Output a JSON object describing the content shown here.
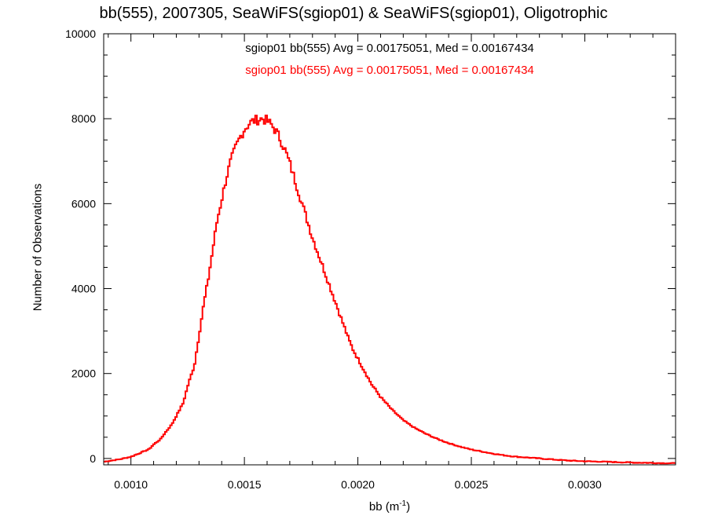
{
  "chart_data": {
    "type": "line",
    "title": "bb(555), 2007305, SeaWiFS(sgiop01) & SeaWiFS(sgiop01), Oligotrophic",
    "xlabel": {
      "base": "bb (m",
      "sup": "-1",
      "close": ")"
    },
    "ylabel": "Number of Observations",
    "xlim": [
      0.00088,
      0.0034
    ],
    "ylim": [
      -150,
      10000
    ],
    "x_ticks": [
      0.001,
      0.0015,
      0.002,
      0.0025,
      0.003
    ],
    "x_tick_labels": [
      "0.0010",
      "0.0015",
      "0.0020",
      "0.0025",
      "0.0030"
    ],
    "y_ticks": [
      0,
      2000,
      4000,
      6000,
      8000,
      10000
    ],
    "y_tick_labels": [
      "0",
      "2000",
      "4000",
      "6000",
      "8000",
      "10000"
    ],
    "grid": false,
    "legend": [
      {
        "text": "sgiop01 bb(555) Avg = 0.00175051, Med = 0.00167434",
        "color": "#000000"
      },
      {
        "text": "sgiop01 bb(555) Avg = 0.00175051, Med = 0.00167434",
        "color": "#ff0000"
      }
    ],
    "series": [
      {
        "name": "sgiop01 bb(555)",
        "color": "#ff0000",
        "style": "step",
        "x": [
          0.00088,
          0.0009,
          0.00095,
          0.001,
          0.00105,
          0.00108,
          0.0011,
          0.00113,
          0.00115,
          0.00118,
          0.0012,
          0.00123,
          0.00125,
          0.00128,
          0.0013,
          0.00132,
          0.00134,
          0.00136,
          0.00138,
          0.0014,
          0.00142,
          0.00144,
          0.00146,
          0.00148,
          0.0015,
          0.00152,
          0.00154,
          0.00156,
          0.00158,
          0.0016,
          0.00162,
          0.00164,
          0.00166,
          0.00168,
          0.0017,
          0.00172,
          0.00174,
          0.00176,
          0.00178,
          0.0018,
          0.00182,
          0.00184,
          0.00186,
          0.00188,
          0.0019,
          0.00192,
          0.00194,
          0.00196,
          0.00198,
          0.002,
          0.00202,
          0.00204,
          0.00206,
          0.00208,
          0.0021,
          0.00215,
          0.0022,
          0.00225,
          0.0023,
          0.00235,
          0.0024,
          0.00245,
          0.0025,
          0.00255,
          0.0026,
          0.00265,
          0.0027,
          0.00275,
          0.0028,
          0.00285,
          0.0029,
          0.00295,
          0.003,
          0.0031,
          0.0032,
          0.0033,
          0.0034
        ],
        "y": [
          -80,
          -60,
          -20,
          40,
          150,
          220,
          330,
          450,
          600,
          800,
          1000,
          1300,
          1700,
          2200,
          2900,
          3600,
          4200,
          4900,
          5600,
          6100,
          6600,
          7000,
          7300,
          7550,
          7750,
          7880,
          7950,
          7980,
          8000,
          7950,
          7850,
          7700,
          7500,
          7250,
          6950,
          6600,
          6250,
          5900,
          5550,
          5200,
          4900,
          4600,
          4300,
          4000,
          3700,
          3400,
          3100,
          2800,
          2550,
          2350,
          2150,
          1950,
          1750,
          1600,
          1450,
          1150,
          900,
          720,
          580,
          460,
          360,
          280,
          210,
          160,
          110,
          70,
          40,
          20,
          0,
          -20,
          -40,
          -55,
          -65,
          -80,
          -95,
          -105,
          -115
        ]
      }
    ]
  }
}
